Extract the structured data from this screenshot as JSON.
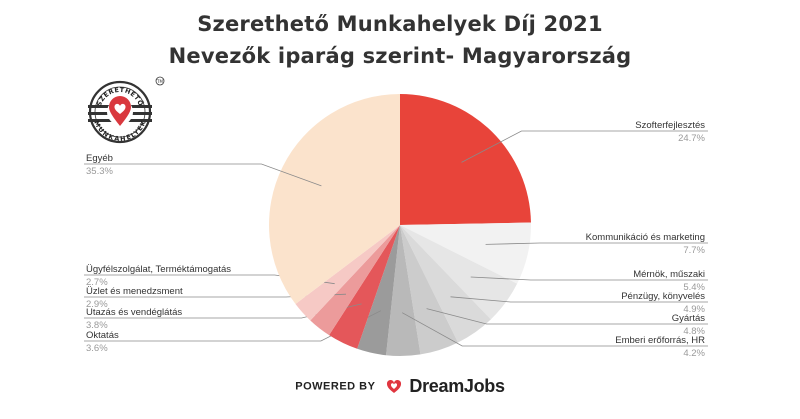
{
  "title_line1": "Szerethető Munkahelyek Díj 2021",
  "title_line2": "Nevezők iparág szerint- Magyarország",
  "logo": {
    "text_top": "SZERETHETŐ",
    "text_bottom": "MUNKAHELYEK",
    "tm": "TM",
    "accent_color": "#d9383e"
  },
  "footer": {
    "powered_by": "POWERED BY",
    "brand": "DreamJobs",
    "brand_color": "#e0353f"
  },
  "chart_data": {
    "type": "pie",
    "unit": "%",
    "start": "12 o'clock",
    "direction": "clockwise",
    "series": [
      {
        "label": "Szofterfejlesztés",
        "value": 24.7,
        "value_text": "24.7%",
        "color": "#e8443a",
        "side": "right"
      },
      {
        "label": "Kommunikáció és marketing",
        "value": 7.7,
        "value_text": "7.7%",
        "color": "#f2f2f2",
        "side": "right"
      },
      {
        "label": "Mérnök, műszaki",
        "value": 5.4,
        "value_text": "5.4%",
        "color": "#e6e6e6",
        "side": "right"
      },
      {
        "label": "Pénzügy, könyvelés",
        "value": 4.9,
        "value_text": "4.9%",
        "color": "#dadada",
        "side": "right"
      },
      {
        "label": "Gyártás",
        "value": 4.8,
        "value_text": "4.8%",
        "color": "#cccccc",
        "side": "right"
      },
      {
        "label": "Emberi erőforrás, HR",
        "value": 4.2,
        "value_text": "4.2%",
        "color": "#b9b9b9",
        "side": "right"
      },
      {
        "label": "Oktatás",
        "value": 3.6,
        "value_text": "3.6%",
        "color": "#9b9b9b",
        "side": "left"
      },
      {
        "label": "Utazás és vendéglátás",
        "value": 3.8,
        "value_text": "3.8%",
        "color": "#e4575a",
        "side": "left"
      },
      {
        "label": "Üzlet és menedzsment",
        "value": 2.9,
        "value_text": "2.9%",
        "color": "#ec9b9b",
        "side": "left"
      },
      {
        "label": "Ügyfélszolgálat, Terméktámogatás",
        "value": 2.7,
        "value_text": "2.7%",
        "color": "#f6c9c5",
        "side": "left"
      },
      {
        "label": "Egyéb",
        "value": 35.3,
        "value_text": "35.3%",
        "color": "#fbe3cc",
        "side": "left"
      }
    ]
  }
}
